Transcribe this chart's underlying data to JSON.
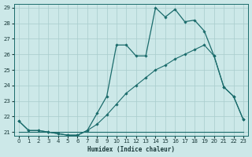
{
  "xlabel": "Humidex (Indice chaleur)",
  "bg_color": "#cce8e8",
  "line_color": "#1a6b6b",
  "grid_color": "#a8cccc",
  "xlim_min": -0.5,
  "xlim_max": 23.5,
  "ylim_min": 20.75,
  "ylim_max": 29.25,
  "yticks": [
    21,
    22,
    23,
    24,
    25,
    26,
    27,
    28,
    29
  ],
  "xticks": [
    0,
    1,
    2,
    3,
    4,
    5,
    6,
    7,
    8,
    9,
    10,
    11,
    12,
    13,
    14,
    15,
    16,
    17,
    18,
    19,
    20,
    21,
    22,
    23
  ],
  "line_main_x": [
    0,
    1,
    2,
    3,
    4,
    5,
    6,
    7,
    8,
    9,
    10,
    11,
    12,
    13,
    14,
    15,
    16,
    17,
    18,
    19,
    20,
    21,
    22,
    23
  ],
  "line_main_y": [
    21.7,
    21.1,
    21.1,
    21.0,
    20.9,
    20.8,
    20.8,
    21.1,
    22.2,
    23.3,
    26.6,
    26.6,
    25.9,
    25.9,
    29.0,
    28.4,
    28.9,
    28.1,
    28.2,
    27.5,
    25.9,
    23.9,
    23.3,
    21.8
  ],
  "line_mid_x": [
    0,
    1,
    2,
    3,
    4,
    5,
    6,
    7,
    8,
    9,
    10,
    11,
    12,
    13,
    14,
    15,
    16,
    17,
    18,
    19,
    20,
    21,
    22,
    23
  ],
  "line_mid_y": [
    21.7,
    21.1,
    21.1,
    21.0,
    20.9,
    20.8,
    20.8,
    21.1,
    21.5,
    22.1,
    22.8,
    23.5,
    24.0,
    24.5,
    25.0,
    25.3,
    25.7,
    26.0,
    26.3,
    26.6,
    25.9,
    23.9,
    23.3,
    21.8
  ],
  "line_flat_x": [
    0,
    1,
    2,
    3,
    4,
    5,
    6,
    7,
    8,
    9,
    10,
    11,
    12,
    13,
    14,
    15,
    16,
    17,
    18,
    19,
    20,
    21,
    22,
    23
  ],
  "line_flat_y": [
    21.0,
    21.0,
    21.0,
    21.0,
    21.0,
    21.0,
    21.0,
    21.0,
    21.0,
    21.0,
    21.0,
    21.0,
    21.0,
    21.0,
    21.0,
    21.0,
    21.0,
    21.0,
    21.0,
    21.0,
    21.0,
    21.0,
    21.0,
    21.0
  ]
}
